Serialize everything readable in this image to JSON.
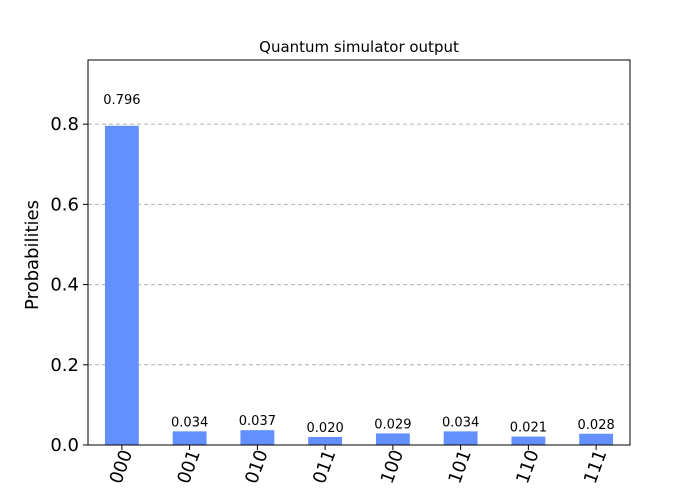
{
  "chart_data": {
    "type": "bar",
    "title": "Quantum simulator output",
    "xlabel": "",
    "ylabel": "Probabilities",
    "categories": [
      "000",
      "001",
      "010",
      "011",
      "100",
      "101",
      "110",
      "111"
    ],
    "values": [
      0.796,
      0.034,
      0.037,
      0.02,
      0.029,
      0.034,
      0.021,
      0.028
    ],
    "value_labels": [
      "0.796",
      "0.034",
      "0.037",
      "0.020",
      "0.029",
      "0.034",
      "0.021",
      "0.028"
    ],
    "ylim": [
      0,
      0.96
    ],
    "yticks": [
      0.0,
      0.2,
      0.4,
      0.6,
      0.8
    ],
    "ytick_labels": [
      "0.0",
      "0.2",
      "0.4",
      "0.6",
      "0.8"
    ],
    "grid": true,
    "bar_color": "#648fff"
  }
}
